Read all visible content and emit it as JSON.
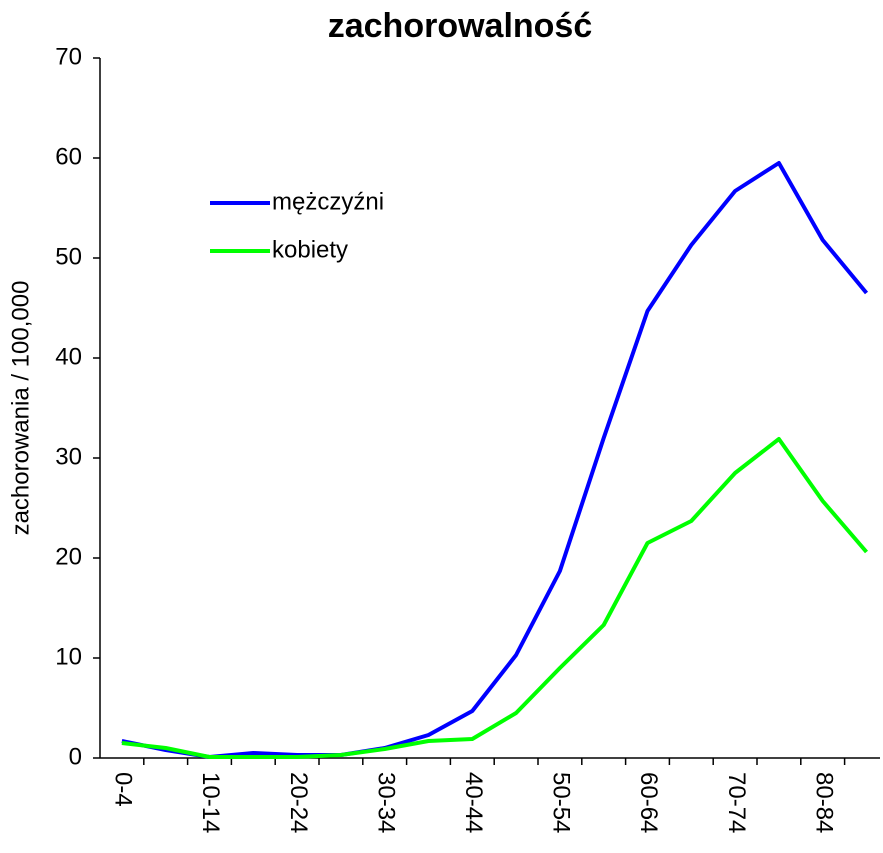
{
  "chart_data": {
    "type": "line",
    "title": "zachorowalność",
    "ylabel": "zachorowania / 100,000",
    "categories": [
      "0-4",
      null,
      "10-14",
      null,
      "20-24",
      null,
      "30-34",
      null,
      "40-44",
      null,
      "50-54",
      null,
      "60-64",
      null,
      "70-74",
      null,
      "80-84",
      null
    ],
    "series": [
      {
        "name": "mężczyźni",
        "color": "#0000ff",
        "values": [
          1.7,
          0.8,
          0.1,
          0.5,
          0.3,
          0.3,
          1.0,
          2.3,
          4.7,
          10.3,
          18.7,
          32.0,
          44.7,
          51.3,
          56.7,
          59.5,
          51.8,
          46.5
        ]
      },
      {
        "name": "kobiety",
        "color": "#00ff00",
        "values": [
          1.5,
          1.0,
          0.1,
          0.1,
          0.1,
          0.3,
          0.9,
          1.7,
          1.9,
          4.5,
          9.0,
          13.3,
          21.5,
          23.7,
          28.5,
          31.9,
          25.7,
          20.6
        ]
      }
    ],
    "ylim": [
      0,
      70
    ],
    "yticks": [
      0,
      10,
      20,
      30,
      40,
      50,
      60,
      70
    ],
    "grid": false,
    "legend": "upper left"
  }
}
